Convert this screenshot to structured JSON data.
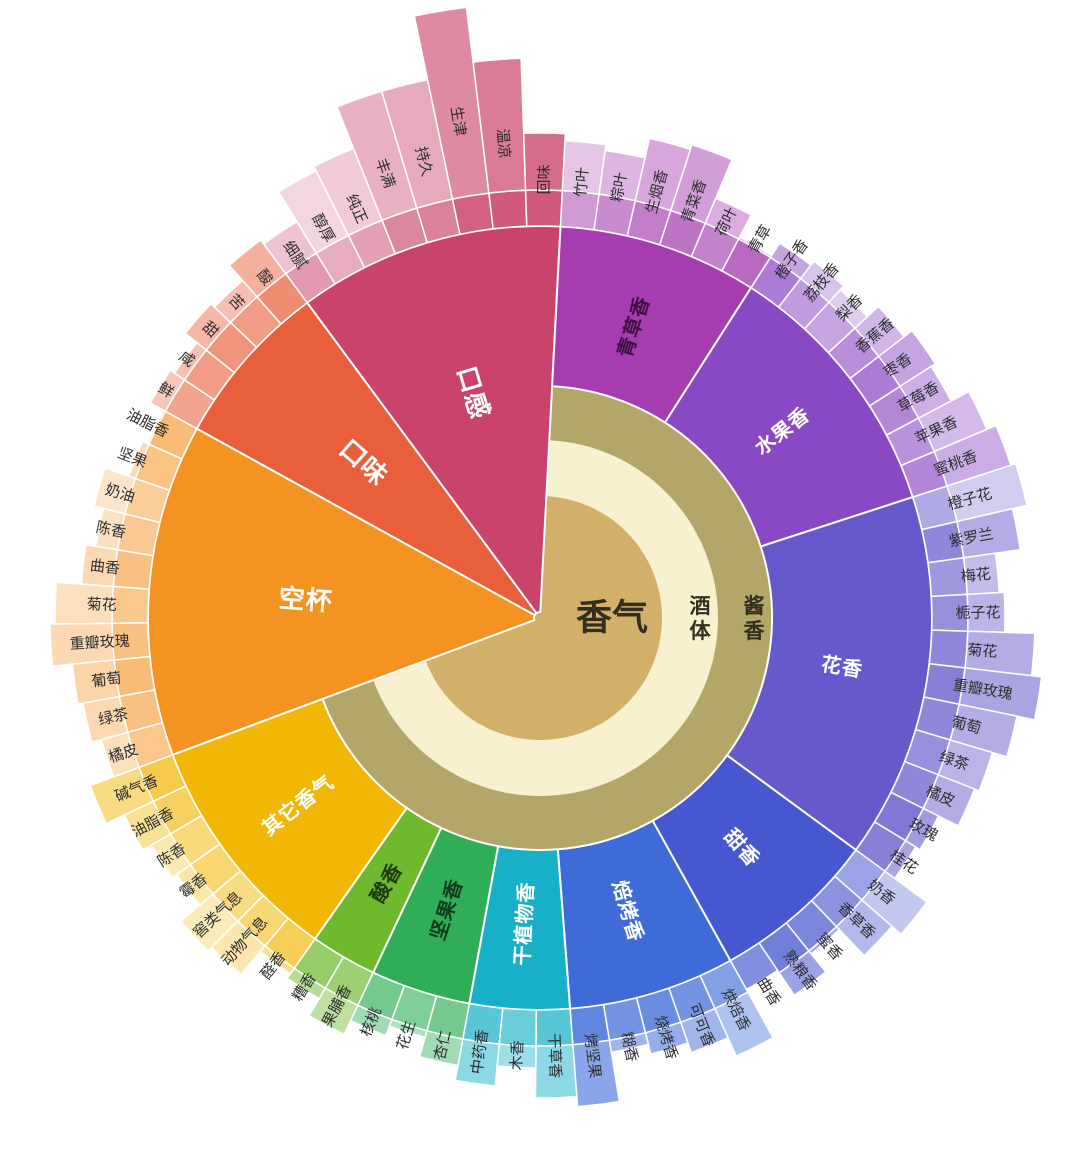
{
  "page": {
    "background": "#ffffff"
  },
  "chart_data": {
    "type": "sunburst",
    "title": "",
    "center": {
      "core_label": "香气",
      "ring_inner_label": "酒体",
      "ring_outer_label": "酱香",
      "core_color": "#d2b069",
      "ring_inner_color": "#f8f1d0",
      "ring_outer_color": "#b2a768",
      "text_color": "#332f20"
    },
    "categories": [
      {
        "name": "口感",
        "color": "#c9436a",
        "label_color": "#ffffff",
        "from_center": true,
        "leaves": [
          {
            "name": "细腻",
            "r": 465,
            "v": 0.32
          },
          {
            "name": "醇厚",
            "r": 500,
            "v": 0.22
          },
          {
            "name": "纯正",
            "r": 505,
            "v": 0.28
          },
          {
            "name": "丰满",
            "r": 550,
            "v": 0.42
          },
          {
            "name": "持久",
            "r": 550,
            "v": 0.45
          },
          {
            "name": "生津",
            "r": 615,
            "v": 0.62
          },
          {
            "name": "温凉",
            "r": 560,
            "v": 0.7
          },
          {
            "name": "回味",
            "r": 485,
            "v": 0.78
          }
        ]
      },
      {
        "name": "青草香",
        "color": "#a53caf",
        "label_color": "#3c1045",
        "from_center": false,
        "leaves": [
          {
            "name": "竹叶",
            "r": 478,
            "v": 0.3
          },
          {
            "name": "粽叶",
            "r": 472,
            "v": 0.38
          },
          {
            "name": "生烟香",
            "r": 492,
            "v": 0.45
          },
          {
            "name": "青菜香",
            "r": 497,
            "v": 0.5
          },
          {
            "name": "荷叶",
            "r": 455,
            "v": 0.42
          },
          {
            "name": "青草",
            "r": 430,
            "v": 0.55
          }
        ]
      },
      {
        "name": "水果香",
        "color": "#8a49c4",
        "label_color": "#ffffff",
        "from_center": false,
        "leaves": [
          {
            "name": "橙子香",
            "r": 445,
            "v": 0.5
          },
          {
            "name": "荔枝香",
            "r": 450,
            "v": 0.33
          },
          {
            "name": "梨香",
            "r": 445,
            "v": 0.28
          },
          {
            "name": "香蕉香",
            "r": 460,
            "v": 0.4
          },
          {
            "name": "枣香",
            "r": 470,
            "v": 0.5
          },
          {
            "name": "草莓香",
            "r": 465,
            "v": 0.44
          },
          {
            "name": "苹果香",
            "r": 485,
            "v": 0.38
          },
          {
            "name": "蜜桃香",
            "r": 495,
            "v": 0.45
          }
        ]
      },
      {
        "name": "花香",
        "color": "#6659cb",
        "label_color": "#ffffff",
        "from_center": false,
        "leaves": [
          {
            "name": "橙子花",
            "r": 500,
            "v": 0.3
          },
          {
            "name": "紫罗兰",
            "r": 485,
            "v": 0.5
          },
          {
            "name": "梅花",
            "r": 460,
            "v": 0.4
          },
          {
            "name": "栀子花",
            "r": 465,
            "v": 0.45
          },
          {
            "name": "菊花",
            "r": 495,
            "v": 0.5
          },
          {
            "name": "重瓣玫瑰",
            "r": 505,
            "v": 0.55
          },
          {
            "name": "葡萄",
            "r": 487,
            "v": 0.5
          },
          {
            "name": "绿茶",
            "r": 472,
            "v": 0.45
          },
          {
            "name": "橘皮",
            "r": 467,
            "v": 0.5
          },
          {
            "name": "玫瑰",
            "r": 445,
            "v": 0.6
          },
          {
            "name": "桂花",
            "r": 440,
            "v": 0.55
          }
        ]
      },
      {
        "name": "甜香",
        "color": "#4757cf",
        "label_color": "#ffffff",
        "from_center": false,
        "leaves": [
          {
            "name": "奶香",
            "r": 480,
            "v": 0.33
          },
          {
            "name": "香草香",
            "r": 468,
            "v": 0.42
          },
          {
            "name": "蜜香",
            "r": 432,
            "v": 0.5
          },
          {
            "name": "熟粮香",
            "r": 455,
            "v": 0.55
          },
          {
            "name": "曲香",
            "r": 425,
            "v": 0.45
          }
        ]
      },
      {
        "name": "焙烤香",
        "color": "#3e6bd8",
        "label_color": "#ffffff",
        "from_center": false,
        "leaves": [
          {
            "name": "烘焙香",
            "r": 480,
            "v": 0.42
          },
          {
            "name": "可可香",
            "r": 460,
            "v": 0.5
          },
          {
            "name": "烧烤香",
            "r": 450,
            "v": 0.55
          },
          {
            "name": "糊香",
            "r": 440,
            "v": 0.5
          },
          {
            "name": "烤坚果",
            "r": 490,
            "v": 0.6
          }
        ]
      },
      {
        "name": "干植物香",
        "color": "#18b0c9",
        "label_color": "#ffffff",
        "from_center": false,
        "leaves": [
          {
            "name": "干草香",
            "r": 480,
            "v": 0.5
          },
          {
            "name": "木香",
            "r": 450,
            "v": 0.42
          },
          {
            "name": "中药香",
            "r": 470,
            "v": 0.5
          }
        ]
      },
      {
        "name": "坚果香",
        "color": "#2fae57",
        "label_color": "#0e3a20",
        "from_center": false,
        "leaves": [
          {
            "name": "杏仁",
            "r": 455,
            "v": 0.45
          },
          {
            "name": "花生",
            "r": 435,
            "v": 0.38
          },
          {
            "name": "核桃",
            "r": 445,
            "v": 0.45
          }
        ]
      },
      {
        "name": "酸香",
        "color": "#6eb92e",
        "label_color": "#1d3a0b",
        "from_center": false,
        "leaves": [
          {
            "name": "果脯香",
            "r": 460,
            "v": 0.45
          },
          {
            "name": "糟香",
            "r": 440,
            "v": 0.5
          }
        ]
      },
      {
        "name": "其它香气",
        "color": "#f2b705",
        "label_color": "#ffffff",
        "from_center": false,
        "leaves": [
          {
            "name": "醛香",
            "r": 435,
            "v": 0.45
          },
          {
            "name": "动物气息",
            "r": 465,
            "v": 0.33
          },
          {
            "name": "窖类气息",
            "r": 470,
            "v": 0.28
          },
          {
            "name": "霉香",
            "r": 445,
            "v": 0.35
          },
          {
            "name": "陈香",
            "r": 450,
            "v": 0.3
          },
          {
            "name": "油脂香",
            "r": 460,
            "v": 0.42
          },
          {
            "name": "碱气香",
            "r": 480,
            "v": 0.5
          }
        ]
      },
      {
        "name": "空杯",
        "color": "#f59322",
        "label_color": "#ffffff",
        "from_center": true,
        "leaves": [
          {
            "name": "橘皮",
            "r": 455,
            "v": 0.3
          },
          {
            "name": "绿茶",
            "r": 465,
            "v": 0.35
          },
          {
            "name": "葡萄",
            "r": 470,
            "v": 0.4
          },
          {
            "name": "重瓣玫瑰",
            "r": 490,
            "v": 0.35
          },
          {
            "name": "菊花",
            "r": 485,
            "v": 0.3
          },
          {
            "name": "曲香",
            "r": 460,
            "v": 0.35
          },
          {
            "name": "陈香",
            "r": 450,
            "v": 0.28
          },
          {
            "name": "奶油",
            "r": 460,
            "v": 0.24
          },
          {
            "name": "坚果",
            "r": 435,
            "v": 0.33
          },
          {
            "name": "油脂香",
            "r": 430,
            "v": 0.4
          }
        ]
      },
      {
        "name": "口味",
        "color": "#ea5f3b",
        "label_color": "#ffffff",
        "from_center": true,
        "leaves": [
          {
            "name": "鲜",
            "r": 445,
            "v": 0.35
          },
          {
            "name": "咸",
            "r": 440,
            "v": 0.4
          },
          {
            "name": "甜",
            "r": 455,
            "v": 0.45
          },
          {
            "name": "苦",
            "r": 450,
            "v": 0.4
          },
          {
            "name": "酸",
            "r": 470,
            "v": 0.5
          }
        ]
      }
    ]
  }
}
